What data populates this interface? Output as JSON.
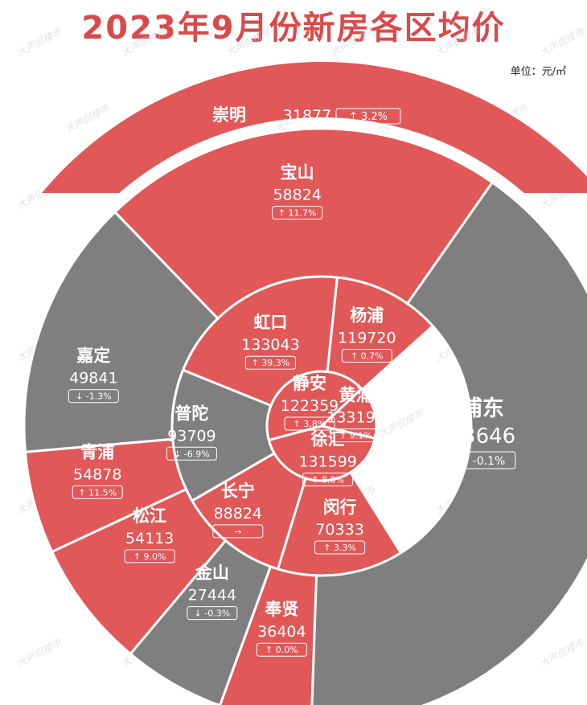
{
  "header": {
    "title": "2023年9月份新房各区均价",
    "unit": "单位：元/㎡",
    "watermark": "大声侃楼市"
  },
  "colors": {
    "rise": "#e05858",
    "fall": "#7f7f7f",
    "title": "#d94a4a",
    "text": "#ffffff"
  },
  "chart_data": {
    "type": "sunburst",
    "title": "2023年9月份新房各区均价",
    "unit": "单位：元/㎡",
    "districts": [
      {
        "name": "静安",
        "value": 122359,
        "change": "3.8%",
        "trend": "up",
        "ring": "core"
      },
      {
        "name": "黄浦",
        "value": 133195,
        "change": "9.1%",
        "trend": "up",
        "ring": "core"
      },
      {
        "name": "徐汇",
        "value": 131599,
        "change": "8.0%",
        "trend": "up",
        "ring": "core"
      },
      {
        "name": "虹口",
        "value": 133043,
        "change": "39.3%",
        "trend": "up",
        "ring": "inner"
      },
      {
        "name": "杨浦",
        "value": 119720,
        "change": "0.7%",
        "trend": "up",
        "ring": "inner"
      },
      {
        "name": "普陀",
        "value": 93709,
        "change": "-6.9%",
        "trend": "down",
        "ring": "inner"
      },
      {
        "name": "长宁",
        "value": 88824,
        "change": "",
        "trend": "flat",
        "ring": "inner"
      },
      {
        "name": "闵行",
        "value": 70333,
        "change": "3.3%",
        "trend": "up",
        "ring": "inner"
      },
      {
        "name": "宝山",
        "value": 58824,
        "change": "11.7%",
        "trend": "up",
        "ring": "outer"
      },
      {
        "name": "浦东",
        "value": 63646,
        "change": "-0.1%",
        "trend": "down",
        "ring": "outer"
      },
      {
        "name": "奉贤",
        "value": 36404,
        "change": "0.0%",
        "trend": "up",
        "ring": "outer"
      },
      {
        "name": "金山",
        "value": 27444,
        "change": "-0.3%",
        "trend": "down",
        "ring": "outer"
      },
      {
        "name": "松江",
        "value": 54113,
        "change": "9.0%",
        "trend": "up",
        "ring": "outer"
      },
      {
        "name": "青浦",
        "value": 54878,
        "change": "11.5%",
        "trend": "up",
        "ring": "outer"
      },
      {
        "name": "嘉定",
        "value": 49841,
        "change": "-1.3%",
        "trend": "down",
        "ring": "outer"
      },
      {
        "name": "崇明",
        "value": 31877,
        "change": "3.2%",
        "trend": "up",
        "ring": "top"
      }
    ]
  }
}
